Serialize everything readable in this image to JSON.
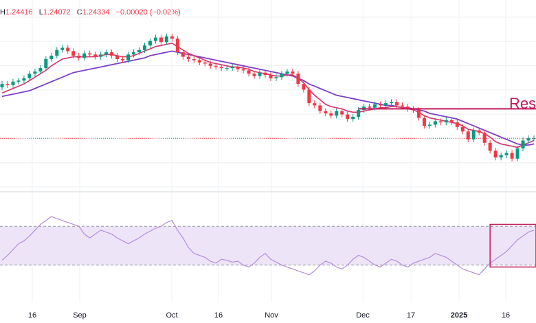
{
  "header": {
    "ohlc": [
      {
        "key": "H",
        "value": "1.24416"
      },
      {
        "key": "L",
        "value": "1.24072"
      },
      {
        "key": "C",
        "value": "1.24334"
      },
      {
        "key": "",
        "value": "−0.00020 (−0.02%)"
      }
    ]
  },
  "annotation": {
    "text": "Resi",
    "color": "#c2185b"
  },
  "colors": {
    "up": "#089981",
    "down": "#f23645",
    "ema_fast": "#d6336c",
    "ema_slow": "#7b3fc6",
    "rsi_line": "#b58ce0",
    "rsi_band": "#ede4f7",
    "resistance": "#c2185b",
    "grid": "#eef0f3"
  },
  "chart_data": [
    {
      "type": "candlestick",
      "x_tick_labels": [
        "16",
        "Sep",
        "Oct",
        "16",
        "Nov",
        "Dec",
        "17",
        "2025",
        "16"
      ],
      "ylim": [
        1.2,
        1.35
      ],
      "grid": true,
      "series": [
        {
          "kind": "candles",
          "open": [
            1.288,
            1.291,
            1.29,
            1.293,
            1.294,
            1.296,
            1.3,
            1.302,
            1.305,
            1.313,
            1.316,
            1.321,
            1.323,
            1.32,
            1.316,
            1.314,
            1.318,
            1.317,
            1.315,
            1.317,
            1.319,
            1.316,
            1.313,
            1.312,
            1.317,
            1.319,
            1.321,
            1.325,
            1.329,
            1.332,
            1.328,
            1.333,
            1.331,
            1.319,
            1.315,
            1.313,
            1.312,
            1.31,
            1.309,
            1.307,
            1.306,
            1.305,
            1.305,
            1.306,
            1.304,
            1.303,
            1.3,
            1.298,
            1.301,
            1.299,
            1.296,
            1.297,
            1.3,
            1.302,
            1.3,
            1.291,
            1.286,
            1.274,
            1.272,
            1.267,
            1.265,
            1.263,
            1.267,
            1.264,
            1.26,
            1.262,
            1.268,
            1.271,
            1.27,
            1.273,
            1.272,
            1.274,
            1.275,
            1.272,
            1.271,
            1.269,
            1.268,
            1.261,
            1.254,
            1.255,
            1.258,
            1.257,
            1.259,
            1.257,
            1.253,
            1.249,
            1.242,
            1.25,
            1.248,
            1.239,
            1.232,
            1.226,
            1.228,
            1.23,
            1.225,
            1.234,
            1.241,
            1.243
          ],
          "close": [
            1.291,
            1.29,
            1.293,
            1.294,
            1.296,
            1.3,
            1.302,
            1.305,
            1.313,
            1.316,
            1.321,
            1.323,
            1.32,
            1.316,
            1.314,
            1.318,
            1.317,
            1.315,
            1.317,
            1.319,
            1.316,
            1.313,
            1.312,
            1.317,
            1.319,
            1.321,
            1.325,
            1.329,
            1.332,
            1.328,
            1.333,
            1.331,
            1.319,
            1.315,
            1.313,
            1.312,
            1.31,
            1.309,
            1.307,
            1.306,
            1.305,
            1.305,
            1.306,
            1.304,
            1.303,
            1.3,
            1.298,
            1.301,
            1.299,
            1.296,
            1.297,
            1.3,
            1.302,
            1.3,
            1.291,
            1.286,
            1.274,
            1.272,
            1.267,
            1.265,
            1.263,
            1.267,
            1.264,
            1.26,
            1.262,
            1.268,
            1.271,
            1.27,
            1.273,
            1.272,
            1.274,
            1.275,
            1.272,
            1.271,
            1.269,
            1.268,
            1.261,
            1.254,
            1.255,
            1.258,
            1.257,
            1.259,
            1.257,
            1.253,
            1.249,
            1.242,
            1.25,
            1.248,
            1.239,
            1.232,
            1.226,
            1.228,
            1.23,
            1.225,
            1.234,
            1.241,
            1.243,
            1.243
          ]
        },
        {
          "kind": "line",
          "values": [
            1.283,
            1.285,
            1.287,
            1.289,
            1.291,
            1.294,
            1.297,
            1.3,
            1.303,
            1.307,
            1.31,
            1.313,
            1.314,
            1.315,
            1.315,
            1.315,
            1.315,
            1.315,
            1.316,
            1.317,
            1.317,
            1.316,
            1.315,
            1.315,
            1.316,
            1.318,
            1.32,
            1.322,
            1.324,
            1.325,
            1.326,
            1.327,
            1.324,
            1.321,
            1.318,
            1.316,
            1.314,
            1.312,
            1.31,
            1.309,
            1.308,
            1.307,
            1.306,
            1.306,
            1.305,
            1.304,
            1.302,
            1.301,
            1.3,
            1.299,
            1.298,
            1.298,
            1.299,
            1.299,
            1.296,
            1.292,
            1.286,
            1.281,
            1.277,
            1.273,
            1.271,
            1.27,
            1.269,
            1.267,
            1.266,
            1.266,
            1.267,
            1.268,
            1.269,
            1.27,
            1.27,
            1.271,
            1.271,
            1.27,
            1.269,
            1.268,
            1.266,
            1.263,
            1.261,
            1.26,
            1.259,
            1.258,
            1.257,
            1.256,
            1.254,
            1.251,
            1.25,
            1.249,
            1.247,
            1.244,
            1.24,
            1.238,
            1.237,
            1.236,
            1.235,
            1.237,
            1.239,
            1.241
          ]
        },
        {
          "kind": "line",
          "values": [
            1.28,
            1.281,
            1.282,
            1.283,
            1.284,
            1.285,
            1.287,
            1.289,
            1.291,
            1.293,
            1.295,
            1.297,
            1.299,
            1.301,
            1.302,
            1.303,
            1.304,
            1.305,
            1.306,
            1.307,
            1.308,
            1.309,
            1.31,
            1.311,
            1.312,
            1.313,
            1.314,
            1.316,
            1.317,
            1.318,
            1.319,
            1.32,
            1.319,
            1.318,
            1.317,
            1.316,
            1.315,
            1.314,
            1.313,
            1.312,
            1.311,
            1.31,
            1.309,
            1.308,
            1.307,
            1.306,
            1.305,
            1.304,
            1.303,
            1.302,
            1.301,
            1.3,
            1.299,
            1.298,
            1.296,
            1.294,
            1.291,
            1.289,
            1.287,
            1.285,
            1.283,
            1.281,
            1.28,
            1.279,
            1.278,
            1.277,
            1.276,
            1.275,
            1.274,
            1.273,
            1.272,
            1.272,
            1.271,
            1.27,
            1.27,
            1.269,
            1.268,
            1.267,
            1.265,
            1.264,
            1.263,
            1.262,
            1.261,
            1.26,
            1.258,
            1.256,
            1.254,
            1.252,
            1.25,
            1.248,
            1.246,
            1.244,
            1.242,
            1.24,
            1.238,
            1.237,
            1.237,
            1.238
          ]
        },
        {
          "kind": "hline",
          "value": 1.269,
          "from_index": 65
        }
      ]
    },
    {
      "type": "line",
      "ylim": [
        0,
        100
      ],
      "band": [
        30,
        70
      ],
      "highlight_box": {
        "from_index": 89,
        "range": [
          28,
          72
        ]
      },
      "series": [
        {
          "values": [
            35,
            40,
            46,
            52,
            55,
            60,
            66,
            72,
            76,
            80,
            78,
            76,
            74,
            72,
            70,
            62,
            58,
            62,
            66,
            64,
            62,
            58,
            55,
            52,
            55,
            58,
            62,
            65,
            68,
            70,
            74,
            76,
            66,
            58,
            48,
            42,
            40,
            38,
            34,
            32,
            36,
            35,
            33,
            34,
            30,
            28,
            32,
            38,
            42,
            36,
            33,
            30,
            28,
            26,
            24,
            22,
            20,
            24,
            30,
            34,
            32,
            28,
            26,
            30,
            36,
            40,
            38,
            34,
            30,
            28,
            32,
            36,
            34,
            30,
            28,
            32,
            34,
            36,
            38,
            42,
            40,
            38,
            34,
            30,
            26,
            24,
            22,
            20,
            26,
            32,
            36,
            40,
            44,
            50,
            56,
            60,
            64,
            66
          ]
        }
      ]
    }
  ]
}
